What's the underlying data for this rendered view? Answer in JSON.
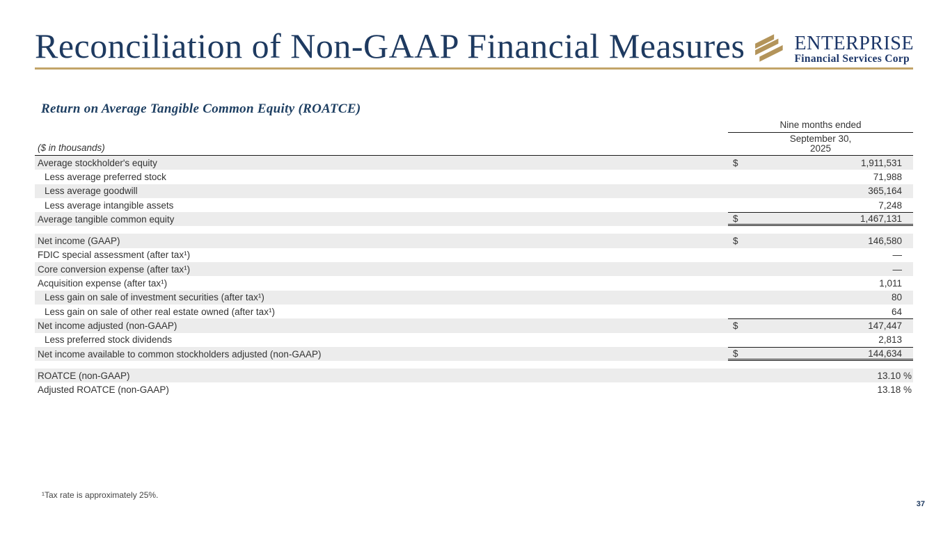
{
  "slide": {
    "title": "Reconciliation of Non-GAAP Financial Measures",
    "page_number": "37"
  },
  "logo": {
    "name": "ENTERPRISE",
    "subtitle": "Financial Services Corp"
  },
  "section": {
    "heading": "Return on Average Tangible Common Equity (ROATCE)"
  },
  "table": {
    "units_label": "($ in thousands)",
    "period_header": "Nine months ended",
    "period_date_line1": "September 30,",
    "period_date_line2": "2025",
    "rows": [
      {
        "label": "Average stockholder's equity",
        "dollar": "$",
        "value": "1,911,531",
        "shaded": true,
        "indent": false,
        "border": "",
        "spacer_before": false,
        "percent": false
      },
      {
        "label": "Less average preferred stock",
        "dollar": "",
        "value": "71,988",
        "shaded": false,
        "indent": true,
        "border": "",
        "spacer_before": false,
        "percent": false
      },
      {
        "label": "Less average goodwill",
        "dollar": "",
        "value": "365,164",
        "shaded": true,
        "indent": true,
        "border": "",
        "spacer_before": false,
        "percent": false
      },
      {
        "label": "Less average intangible assets",
        "dollar": "",
        "value": "7,248",
        "shaded": false,
        "indent": true,
        "border": "",
        "spacer_before": false,
        "percent": false
      },
      {
        "label": "Average tangible common equity",
        "dollar": "$",
        "value": "1,467,131",
        "shaded": true,
        "indent": false,
        "border": "total-final",
        "spacer_before": false,
        "percent": false
      },
      {
        "label": "Net income (GAAP)",
        "dollar": "$",
        "value": "146,580",
        "shaded": true,
        "indent": false,
        "border": "",
        "spacer_before": true,
        "percent": false
      },
      {
        "label": "FDIC special assessment (after tax¹)",
        "dollar": "",
        "value": "—",
        "shaded": false,
        "indent": false,
        "border": "",
        "spacer_before": false,
        "percent": false
      },
      {
        "label": "Core conversion expense (after tax¹)",
        "dollar": "",
        "value": "—",
        "shaded": true,
        "indent": false,
        "border": "",
        "spacer_before": false,
        "percent": false
      },
      {
        "label": "Acquisition expense (after tax¹)",
        "dollar": "",
        "value": "1,011",
        "shaded": false,
        "indent": false,
        "border": "",
        "spacer_before": false,
        "percent": false
      },
      {
        "label": "Less gain on sale of investment securities (after tax¹)",
        "dollar": "",
        "value": "80",
        "shaded": true,
        "indent": true,
        "border": "",
        "spacer_before": false,
        "percent": false
      },
      {
        "label": "Less gain on sale of other real estate owned (after tax¹)",
        "dollar": "",
        "value": "64",
        "shaded": false,
        "indent": true,
        "border": "",
        "spacer_before": false,
        "percent": false
      },
      {
        "label": "Net income adjusted (non-GAAP)",
        "dollar": "$",
        "value": "147,447",
        "shaded": true,
        "indent": false,
        "border": "total",
        "spacer_before": false,
        "percent": false
      },
      {
        "label": "Less preferred stock dividends",
        "dollar": "",
        "value": "2,813",
        "shaded": false,
        "indent": true,
        "border": "",
        "spacer_before": false,
        "percent": false
      },
      {
        "label": "Net income available to common stockholders adjusted (non-GAAP)",
        "dollar": "$",
        "value": "144,634",
        "shaded": true,
        "indent": false,
        "border": "total-final",
        "spacer_before": false,
        "percent": false
      },
      {
        "label": "ROATCE (non-GAAP)",
        "dollar": "",
        "value": "13.10 %",
        "shaded": true,
        "indent": false,
        "border": "",
        "spacer_before": true,
        "percent": true
      },
      {
        "label": "Adjusted ROATCE (non-GAAP)",
        "dollar": "",
        "value": "13.18 %",
        "shaded": false,
        "indent": false,
        "border": "",
        "spacer_before": false,
        "percent": true
      }
    ]
  },
  "footnote": "¹Tax rate is approximately 25%.",
  "colors": {
    "navy": "#1e3a60",
    "gold": "#c2a468",
    "logo_gold": "#b3945a",
    "row_shade": "#ececec"
  }
}
